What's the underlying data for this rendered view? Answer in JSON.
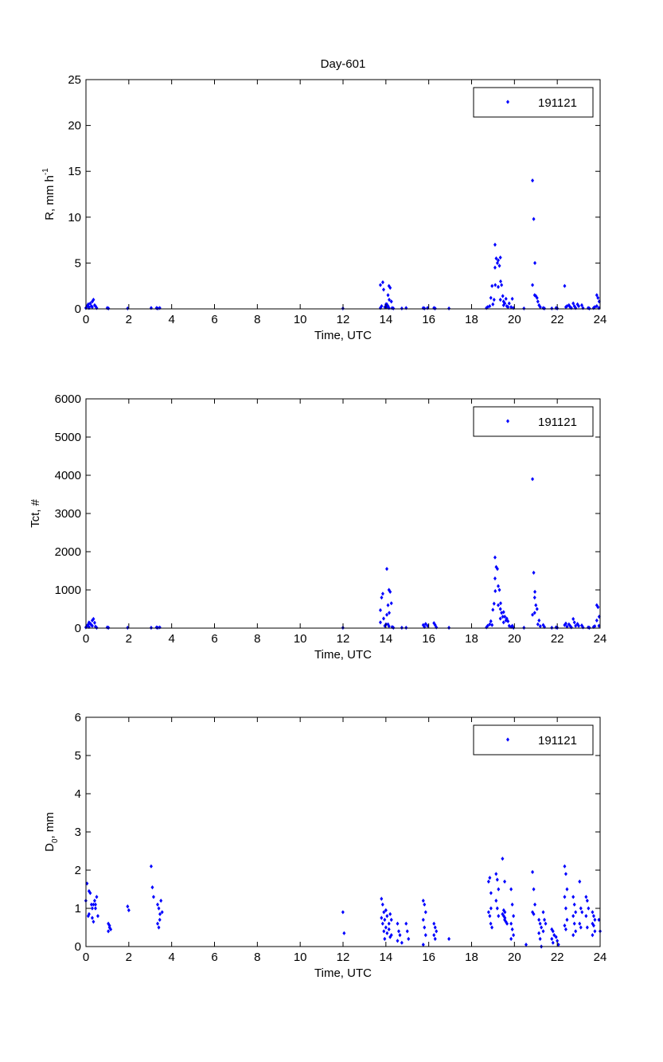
{
  "figure_title": "Day-601",
  "colors": {
    "marker": "#0000ff",
    "axes": "#000000"
  },
  "chart_data": [
    {
      "type": "scatter",
      "title": "Day-601",
      "xlabel": "Time, UTC",
      "ylabel": {
        "main": "R, mm h",
        "sup": "-1",
        "sub": ""
      },
      "xlim": [
        0,
        24
      ],
      "ylim": [
        0,
        25
      ],
      "xticks": [
        0,
        2,
        4,
        6,
        8,
        10,
        12,
        14,
        16,
        18,
        20,
        22,
        24
      ],
      "yticks": [
        0,
        5,
        10,
        15,
        20,
        25
      ],
      "legend": {
        "label": "191121",
        "position": "top-right"
      },
      "grid": false,
      "groups": [
        [
          0.05,
          [
            0.1,
            0.3,
            0.5
          ]
        ],
        [
          0.2,
          [
            0.2,
            0.6,
            0.3,
            0.1
          ]
        ],
        [
          0.35,
          [
            0.8,
            1.0,
            0.4,
            0.2
          ]
        ],
        [
          0.5,
          [
            0.3,
            0.1
          ]
        ],
        [
          1.05,
          [
            0.1,
            0.05
          ]
        ],
        [
          2.0,
          [
            0.05
          ]
        ],
        [
          3.1,
          [
            0.1
          ]
        ],
        [
          3.35,
          [
            0.1,
            0.05
          ]
        ],
        [
          3.5,
          [
            0.1
          ]
        ],
        [
          12.05,
          [
            0.05
          ]
        ],
        [
          13.8,
          [
            0.1,
            0.3,
            2.9,
            2.6
          ]
        ],
        [
          13.95,
          [
            2.1,
            0.2,
            0.5
          ]
        ],
        [
          14.1,
          [
            0.2,
            1.5,
            1.0,
            0.5,
            0.3
          ]
        ],
        [
          14.2,
          [
            2.5,
            2.3,
            0.8,
            0.1
          ]
        ],
        [
          14.35,
          [
            0.1,
            0.05
          ]
        ],
        [
          14.8,
          [
            0.05
          ]
        ],
        [
          15.0,
          [
            0.1
          ]
        ],
        [
          15.8,
          [
            0.1,
            0.05
          ]
        ],
        [
          16.0,
          [
            0.1
          ]
        ],
        [
          16.3,
          [
            0.1,
            0.05
          ]
        ],
        [
          17.0,
          [
            0.05
          ]
        ],
        [
          18.75,
          [
            0.1,
            0.2
          ]
        ],
        [
          18.9,
          [
            0.3,
            1.2,
            2.5
          ]
        ],
        [
          19.05,
          [
            0.5,
            1.0,
            2.6
          ]
        ],
        [
          19.15,
          [
            7.0,
            5.5,
            5.0,
            4.5
          ]
        ],
        [
          19.3,
          [
            5.3,
            4.7,
            3.0,
            2.4
          ]
        ],
        [
          19.4,
          [
            5.6,
            2.6,
            1.4,
            1.0
          ]
        ],
        [
          19.55,
          [
            0.8,
            0.6,
            1.1,
            0.4
          ]
        ],
        [
          19.7,
          [
            0.3,
            0.2,
            0.6
          ]
        ],
        [
          19.9,
          [
            0.2,
            1.1,
            0.1
          ]
        ],
        [
          20.5,
          [
            0.05
          ]
        ],
        [
          20.9,
          [
            14.0,
            9.8,
            5.0,
            2.6
          ]
        ],
        [
          21.0,
          [
            1.5,
            1.4,
            1.2
          ]
        ],
        [
          21.15,
          [
            0.8,
            0.4,
            0.2
          ]
        ],
        [
          21.4,
          [
            0.1,
            0.05
          ]
        ],
        [
          21.8,
          [
            0.05
          ]
        ],
        [
          22.0,
          [
            0.1,
            0.05
          ]
        ],
        [
          22.4,
          [
            2.5,
            0.2,
            0.3
          ]
        ],
        [
          22.6,
          [
            0.4,
            0.2,
            0.1
          ]
        ],
        [
          22.8,
          [
            0.6,
            0.3,
            0.1
          ]
        ],
        [
          23.0,
          [
            0.5,
            0.3
          ]
        ],
        [
          23.2,
          [
            0.4,
            0.1
          ]
        ],
        [
          23.5,
          [
            0.1,
            0.05
          ]
        ],
        [
          23.75,
          [
            0.1,
            0.2
          ]
        ],
        [
          23.9,
          [
            1.5,
            1.2,
            0.8,
            0.3
          ]
        ],
        [
          24.0,
          [
            0.1
          ]
        ]
      ]
    },
    {
      "type": "scatter",
      "xlabel": "Time, UTC",
      "ylabel": {
        "main": "Tct, #",
        "sup": "",
        "sub": ""
      },
      "xlim": [
        0,
        24
      ],
      "ylim": [
        0,
        6000
      ],
      "xticks": [
        0,
        2,
        4,
        6,
        8,
        10,
        12,
        14,
        16,
        18,
        20,
        22,
        24
      ],
      "yticks": [
        0,
        1000,
        2000,
        3000,
        4000,
        5000,
        6000
      ],
      "legend": {
        "label": "191121",
        "position": "top-right"
      },
      "grid": false,
      "groups": [
        [
          0.05,
          [
            20,
            60,
            100
          ]
        ],
        [
          0.2,
          [
            150,
            120,
            80,
            30
          ]
        ],
        [
          0.35,
          [
            200,
            240,
            140,
            60
          ]
        ],
        [
          0.5,
          [
            40,
            10
          ]
        ],
        [
          1.05,
          [
            20,
            10
          ]
        ],
        [
          2.0,
          [
            10
          ]
        ],
        [
          3.1,
          [
            10
          ]
        ],
        [
          3.35,
          [
            20,
            10
          ]
        ],
        [
          3.5,
          [
            20
          ]
        ],
        [
          12.05,
          [
            10
          ]
        ],
        [
          13.8,
          [
            470,
            800,
            900,
            150
          ]
        ],
        [
          13.95,
          [
            250,
            60,
            100
          ]
        ],
        [
          14.1,
          [
            1550,
            600,
            400,
            350,
            100
          ]
        ],
        [
          14.2,
          [
            1000,
            950,
            650,
            50
          ]
        ],
        [
          14.35,
          [
            30,
            10
          ]
        ],
        [
          14.8,
          [
            10
          ]
        ],
        [
          15.0,
          [
            10
          ]
        ],
        [
          15.8,
          [
            80,
            30,
            110
          ]
        ],
        [
          16.0,
          [
            60
          ]
        ],
        [
          16.3,
          [
            130,
            80,
            20
          ]
        ],
        [
          17.0,
          [
            10
          ]
        ],
        [
          18.75,
          [
            20,
            60
          ]
        ],
        [
          18.9,
          [
            100,
            180,
            80
          ]
        ],
        [
          19.05,
          [
            480,
            640,
            970
          ]
        ],
        [
          19.15,
          [
            1850,
            1600,
            1550,
            1300
          ]
        ],
        [
          19.3,
          [
            1100,
            1000,
            650,
            600
          ]
        ],
        [
          19.4,
          [
            500,
            400,
            300,
            250
          ]
        ],
        [
          19.55,
          [
            420,
            300,
            200,
            150
          ]
        ],
        [
          19.7,
          [
            250,
            180,
            60
          ]
        ],
        [
          19.9,
          [
            30,
            60,
            10
          ]
        ],
        [
          20.5,
          [
            10
          ]
        ],
        [
          20.9,
          [
            3900,
            1450,
            950,
            350
          ]
        ],
        [
          21.0,
          [
            800,
            600,
            500,
            400
          ]
        ],
        [
          21.15,
          [
            100,
            200,
            50
          ]
        ],
        [
          21.4,
          [
            80,
            30
          ]
        ],
        [
          21.8,
          [
            10
          ]
        ],
        [
          22.0,
          [
            20,
            10
          ]
        ],
        [
          22.4,
          [
            80,
            120,
            40
          ]
        ],
        [
          22.6,
          [
            100,
            60,
            20
          ]
        ],
        [
          22.8,
          [
            240,
            150,
            60
          ]
        ],
        [
          23.0,
          [
            110,
            60
          ]
        ],
        [
          23.2,
          [
            70,
            20
          ]
        ],
        [
          23.5,
          [
            20,
            10
          ]
        ],
        [
          23.75,
          [
            30,
            50
          ]
        ],
        [
          23.9,
          [
            600,
            550,
            300,
            200
          ]
        ],
        [
          24.0,
          [
            60
          ]
        ]
      ]
    },
    {
      "type": "scatter",
      "xlabel": "Time, UTC",
      "ylabel": {
        "main": "D",
        "sup": "",
        "sub": "0",
        "tail": ", mm"
      },
      "xlim": [
        0,
        24
      ],
      "ylim": [
        0,
        6
      ],
      "xticks": [
        0,
        2,
        4,
        6,
        8,
        10,
        12,
        14,
        16,
        18,
        20,
        22,
        24
      ],
      "yticks": [
        0,
        1,
        2,
        3,
        4,
        5,
        6
      ],
      "legend": {
        "label": "191121",
        "position": "top-right"
      },
      "grid": false,
      "groups": [
        [
          0.05,
          [
            1.2,
            1.65,
            0.8
          ]
        ],
        [
          0.2,
          [
            1.45,
            1.4,
            1.1,
            0.85
          ]
        ],
        [
          0.35,
          [
            1.0,
            1.1,
            1.2,
            0.75,
            0.65
          ]
        ],
        [
          0.5,
          [
            1.0,
            1.3,
            0.8,
            1.1
          ]
        ],
        [
          1.1,
          [
            0.6,
            0.5,
            0.45,
            0.4,
            0.55
          ]
        ],
        [
          2.0,
          [
            1.05,
            0.95
          ]
        ],
        [
          3.1,
          [
            2.1,
            1.55,
            1.3
          ]
        ],
        [
          3.4,
          [
            1.1,
            1.0,
            0.85,
            0.6,
            0.5
          ]
        ],
        [
          3.5,
          [
            0.7,
            1.2,
            0.9
          ]
        ],
        [
          12.05,
          [
            0.9,
            0.35
          ]
        ],
        [
          13.85,
          [
            1.25,
            1.1,
            0.9,
            0.75,
            0.6,
            0.4
          ]
        ],
        [
          14.0,
          [
            0.2,
            0.95,
            0.8,
            0.7,
            0.5,
            0.35
          ]
        ],
        [
          14.2,
          [
            0.6,
            0.85,
            0.3,
            0.45,
            0.25,
            0.7
          ]
        ],
        [
          14.6,
          [
            0.6,
            0.4,
            0.3,
            0.15
          ]
        ],
        [
          14.8,
          [
            0.1
          ]
        ],
        [
          15.0,
          [
            0.6,
            0.4,
            0.2
          ]
        ],
        [
          15.8,
          [
            1.2,
            1.1,
            0.9,
            0.7,
            0.5,
            0.3,
            0.05
          ]
        ],
        [
          16.3,
          [
            0.6,
            0.5,
            0.4,
            0.3,
            0.2
          ]
        ],
        [
          17.0,
          [
            0.2
          ]
        ],
        [
          18.85,
          [
            1.7,
            1.8,
            1.4,
            0.9,
            0.8,
            1.0
          ]
        ],
        [
          18.95,
          [
            0.6,
            0.5
          ]
        ],
        [
          19.2,
          [
            1.9,
            1.75,
            1.5,
            1.2,
            1.0,
            0.8
          ]
        ],
        [
          19.5,
          [
            2.3,
            0.95,
            0.9,
            0.85,
            0.8,
            0.75
          ]
        ],
        [
          19.6,
          [
            0.7,
            0.65,
            0.6,
            1.7
          ]
        ],
        [
          19.9,
          [
            1.5,
            1.1,
            0.8,
            0.6,
            0.45,
            0.3,
            0.2
          ]
        ],
        [
          20.6,
          [
            0.05
          ]
        ],
        [
          20.9,
          [
            1.95,
            1.5,
            1.1,
            0.9,
            0.85
          ]
        ],
        [
          21.2,
          [
            0.7,
            0.6,
            0.5,
            0.35,
            0.2,
            0.0
          ]
        ],
        [
          21.4,
          [
            0.9,
            0.7,
            0.6,
            0.4
          ]
        ],
        [
          21.8,
          [
            0.45,
            0.4,
            0.3,
            0.2,
            0.1
          ]
        ],
        [
          22.0,
          [
            0.25,
            0.15,
            0.05
          ]
        ],
        [
          22.4,
          [
            2.1,
            1.9,
            1.5,
            1.3,
            1.0,
            0.7,
            0.55,
            0.45
          ]
        ],
        [
          22.8,
          [
            1.3,
            1.1,
            0.9,
            0.8,
            0.6,
            0.4,
            0.3
          ]
        ],
        [
          23.1,
          [
            1.7,
            1.0,
            0.9,
            0.6,
            0.5
          ]
        ],
        [
          23.4,
          [
            1.3,
            1.2,
            1.0,
            0.8,
            0.5
          ]
        ],
        [
          23.7,
          [
            0.9,
            0.8,
            0.7,
            0.6,
            0.55,
            0.4,
            0.3
          ]
        ],
        [
          24.0,
          [
            0.7,
            0.4
          ]
        ]
      ]
    }
  ]
}
